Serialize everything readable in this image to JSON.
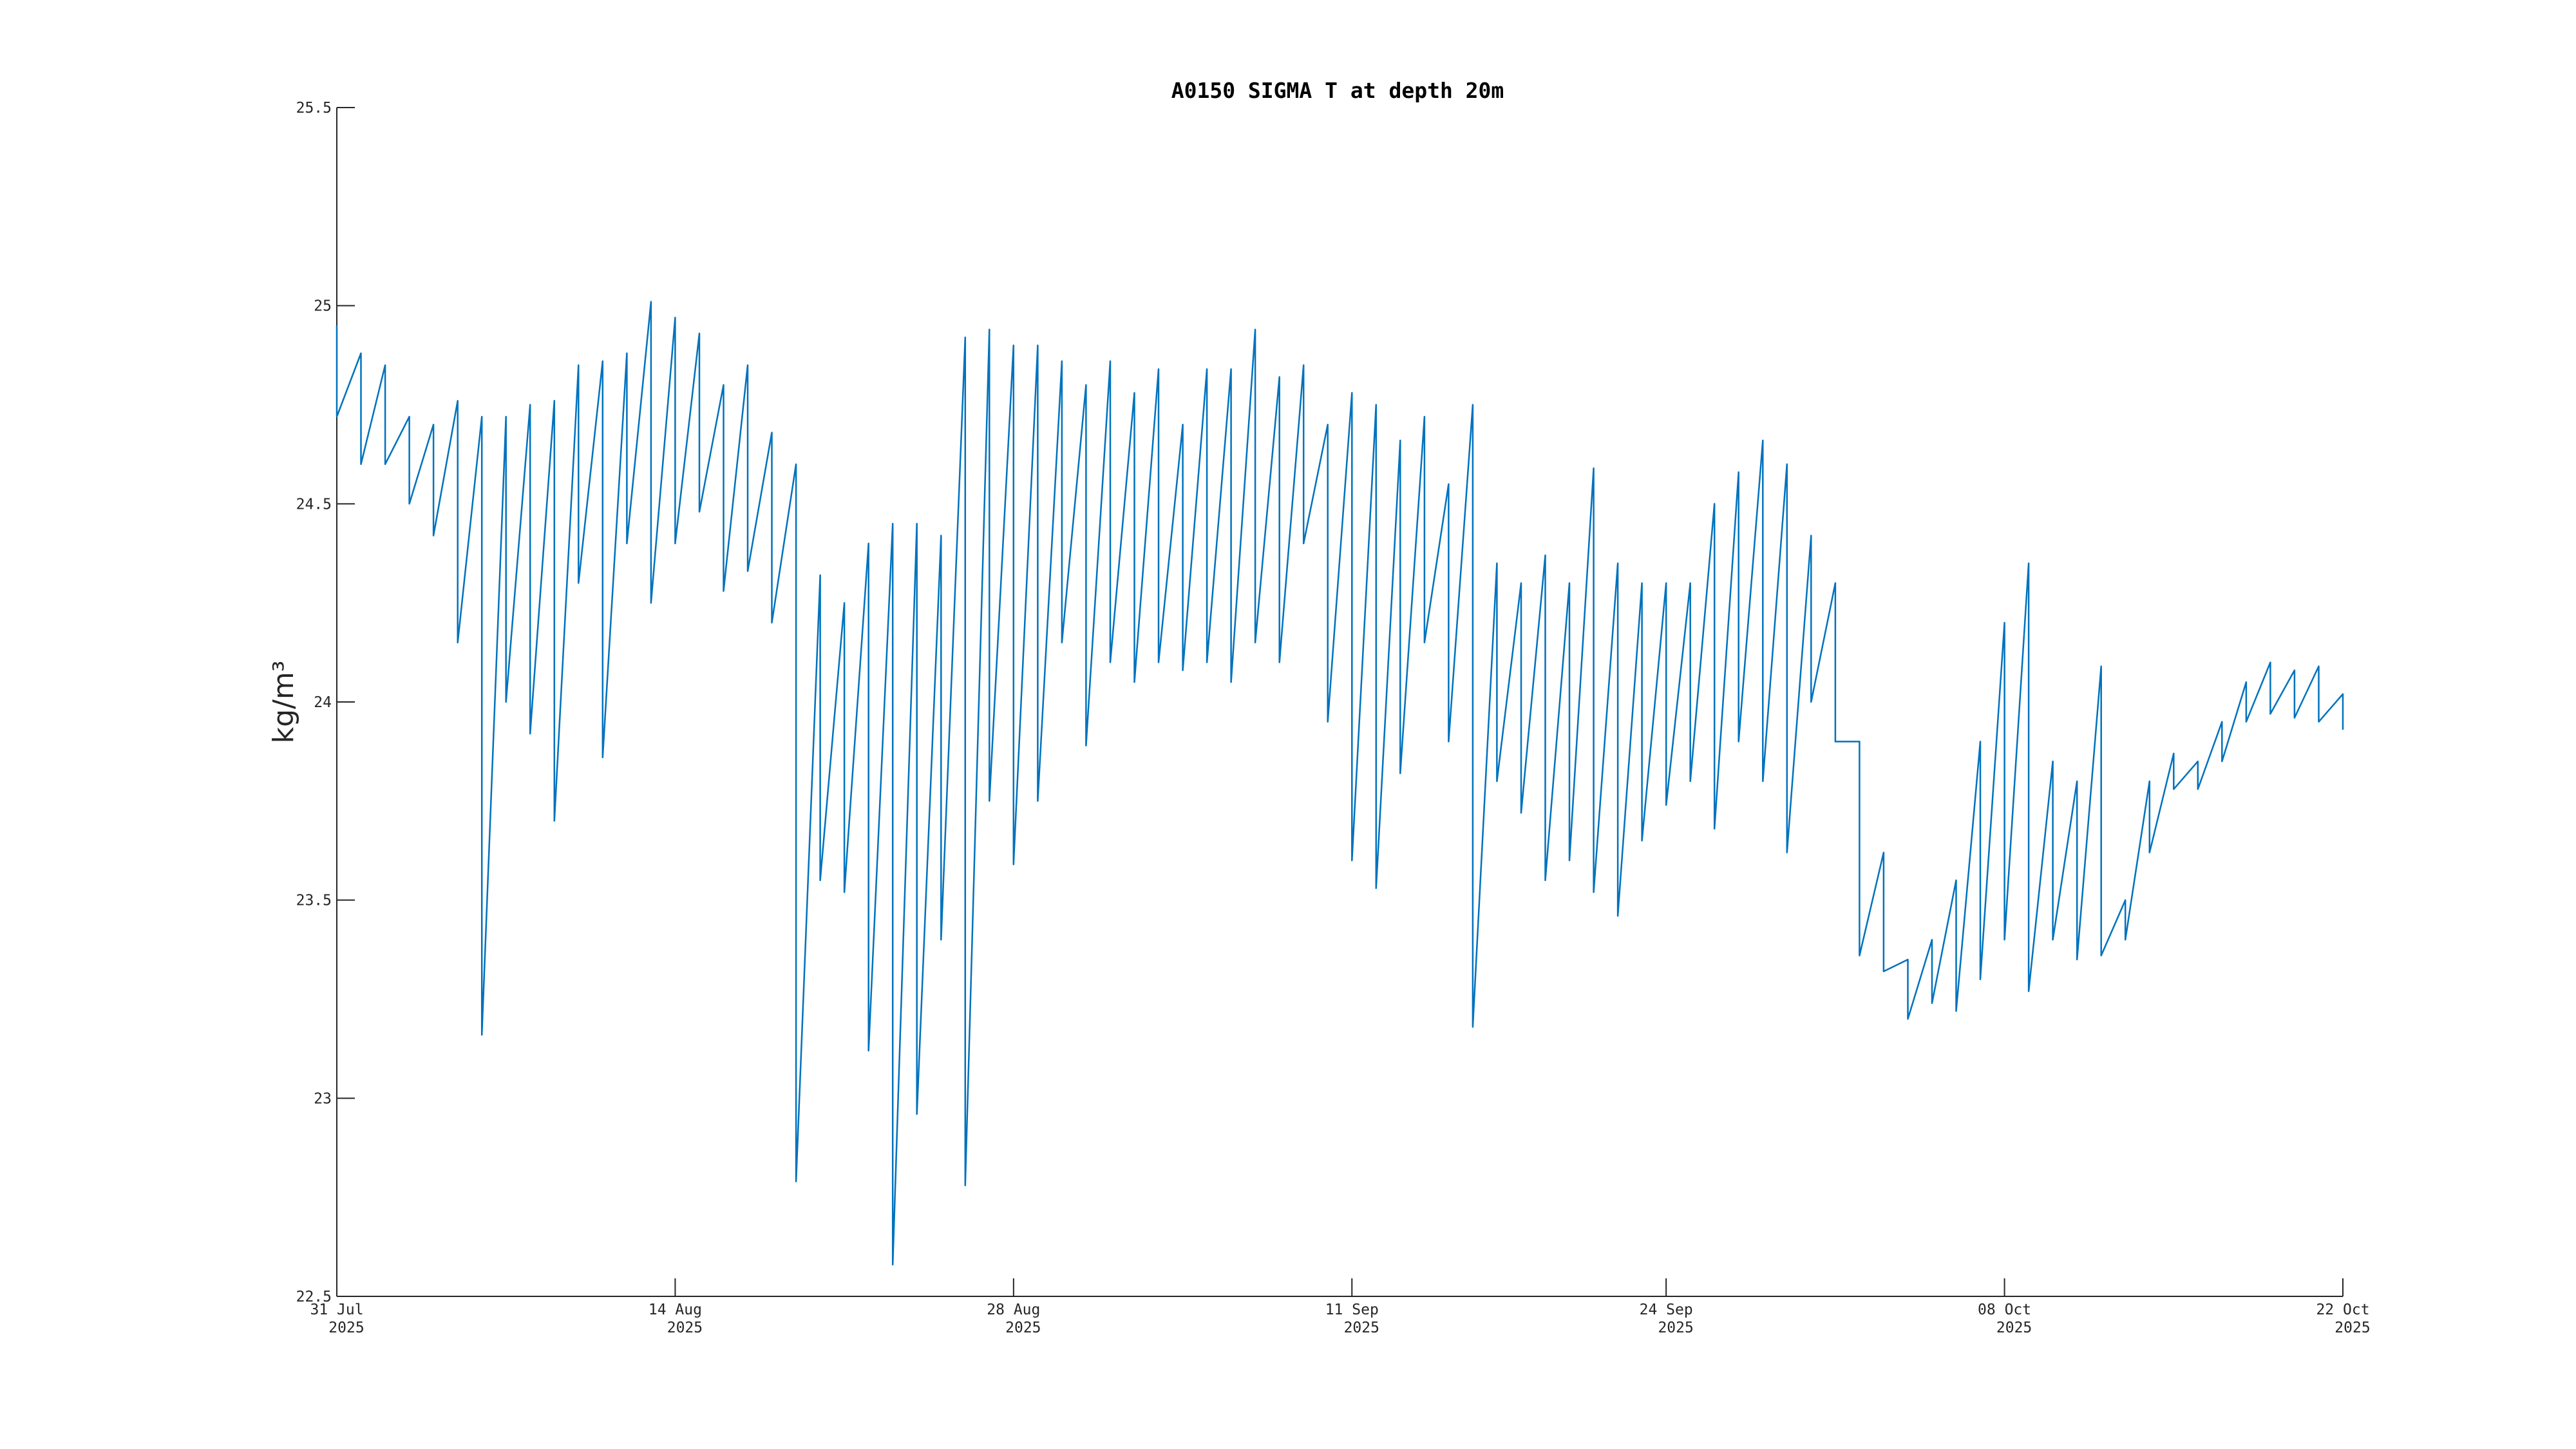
{
  "chart_data": {
    "type": "line",
    "title": "A0150 SIGMA T at depth 20m",
    "ylabel": "kg/m³",
    "x": [
      "2025-07-31",
      "2025-07-31",
      "2025-08-01",
      "2025-08-01",
      "2025-08-02",
      "2025-08-02",
      "2025-08-03",
      "2025-08-03",
      "2025-08-04",
      "2025-08-04",
      "2025-08-05",
      "2025-08-05",
      "2025-08-06",
      "2025-08-06",
      "2025-08-07",
      "2025-08-07",
      "2025-08-08",
      "2025-08-08",
      "2025-08-09",
      "2025-08-09",
      "2025-08-10",
      "2025-08-10",
      "2025-08-11",
      "2025-08-11",
      "2025-08-12",
      "2025-08-12",
      "2025-08-13",
      "2025-08-13",
      "2025-08-14",
      "2025-08-14",
      "2025-08-15",
      "2025-08-15",
      "2025-08-16",
      "2025-08-16",
      "2025-08-17",
      "2025-08-17",
      "2025-08-18",
      "2025-08-18",
      "2025-08-19",
      "2025-08-19",
      "2025-08-20",
      "2025-08-20",
      "2025-08-21",
      "2025-08-21",
      "2025-08-22",
      "2025-08-22",
      "2025-08-23",
      "2025-08-23",
      "2025-08-24",
      "2025-08-24",
      "2025-08-25",
      "2025-08-25",
      "2025-08-26",
      "2025-08-26",
      "2025-08-27",
      "2025-08-27",
      "2025-08-28",
      "2025-08-28",
      "2025-08-29",
      "2025-08-29",
      "2025-08-30",
      "2025-08-30",
      "2025-08-31",
      "2025-08-31",
      "2025-09-01",
      "2025-09-01",
      "2025-09-02",
      "2025-09-02",
      "2025-09-03",
      "2025-09-03",
      "2025-09-04",
      "2025-09-04",
      "2025-09-05",
      "2025-09-05",
      "2025-09-06",
      "2025-09-06",
      "2025-09-07",
      "2025-09-07",
      "2025-09-08",
      "2025-09-08",
      "2025-09-09",
      "2025-09-09",
      "2025-09-10",
      "2025-09-10",
      "2025-09-11",
      "2025-09-11",
      "2025-09-12",
      "2025-09-12",
      "2025-09-13",
      "2025-09-13",
      "2025-09-14",
      "2025-09-14",
      "2025-09-15",
      "2025-09-15",
      "2025-09-16",
      "2025-09-16",
      "2025-09-17",
      "2025-09-17",
      "2025-09-18",
      "2025-09-18",
      "2025-09-19",
      "2025-09-19",
      "2025-09-20",
      "2025-09-20",
      "2025-09-21",
      "2025-09-21",
      "2025-09-22",
      "2025-09-22",
      "2025-09-23",
      "2025-09-23",
      "2025-09-24",
      "2025-09-24",
      "2025-09-25",
      "2025-09-25",
      "2025-09-26",
      "2025-09-26",
      "2025-09-27",
      "2025-09-27",
      "2025-09-28",
      "2025-09-28",
      "2025-09-29",
      "2025-09-29",
      "2025-09-30",
      "2025-09-30",
      "2025-10-01",
      "2025-10-01",
      "2025-10-02",
      "2025-10-02",
      "2025-10-03",
      "2025-10-03",
      "2025-10-04",
      "2025-10-04",
      "2025-10-05",
      "2025-10-05",
      "2025-10-06",
      "2025-10-06",
      "2025-10-07",
      "2025-10-07",
      "2025-10-08",
      "2025-10-08",
      "2025-10-09",
      "2025-10-09",
      "2025-10-10",
      "2025-10-10",
      "2025-10-11",
      "2025-10-11",
      "2025-10-12",
      "2025-10-12",
      "2025-10-13",
      "2025-10-13",
      "2025-10-14",
      "2025-10-14",
      "2025-10-15",
      "2025-10-15",
      "2025-10-16",
      "2025-10-16",
      "2025-10-17",
      "2025-10-17",
      "2025-10-18",
      "2025-10-18",
      "2025-10-19",
      "2025-10-19",
      "2025-10-20",
      "2025-10-20",
      "2025-10-21",
      "2025-10-21",
      "2025-10-22",
      "2025-10-22"
    ],
    "series": [
      {
        "color": "#0072bd",
        "values": [
          24.95,
          24.72,
          24.88,
          24.6,
          24.85,
          24.6,
          24.72,
          24.5,
          24.7,
          24.42,
          24.76,
          24.15,
          24.72,
          23.16,
          24.72,
          24.0,
          24.75,
          23.92,
          24.76,
          23.7,
          24.85,
          24.3,
          24.86,
          23.86,
          24.88,
          24.4,
          25.01,
          24.25,
          24.97,
          24.4,
          24.93,
          24.48,
          24.8,
          24.28,
          24.85,
          24.33,
          24.68,
          24.2,
          24.6,
          22.79,
          24.32,
          23.55,
          24.25,
          23.52,
          24.4,
          23.12,
          24.45,
          22.58,
          24.45,
          22.96,
          24.42,
          23.4,
          24.92,
          22.78,
          24.94,
          23.75,
          24.9,
          23.59,
          24.9,
          23.75,
          24.86,
          24.15,
          24.8,
          23.89,
          24.86,
          24.1,
          24.78,
          24.05,
          24.84,
          24.1,
          24.7,
          24.08,
          24.84,
          24.1,
          24.84,
          24.05,
          24.94,
          24.15,
          24.82,
          24.1,
          24.85,
          24.4,
          24.7,
          23.95,
          24.78,
          23.6,
          24.75,
          23.53,
          24.66,
          23.82,
          24.72,
          24.15,
          24.55,
          23.9,
          24.75,
          23.18,
          24.35,
          23.8,
          24.3,
          23.72,
          24.37,
          23.55,
          24.3,
          23.6,
          24.59,
          23.52,
          24.35,
          23.46,
          24.3,
          23.65,
          24.3,
          23.74,
          24.3,
          23.8,
          24.5,
          23.68,
          24.58,
          23.9,
          24.66,
          23.8,
          24.6,
          23.62,
          24.42,
          24.0,
          24.3,
          23.9,
          23.9,
          23.36,
          23.62,
          23.32,
          23.35,
          23.2,
          23.4,
          23.24,
          23.55,
          23.22,
          23.9,
          23.3,
          24.2,
          23.4,
          24.35,
          23.27,
          23.85,
          23.4,
          23.8,
          23.35,
          24.09,
          23.36,
          23.5,
          23.4,
          23.8,
          23.62,
          23.87,
          23.78,
          23.85,
          23.78,
          23.95,
          23.85,
          24.05,
          23.95,
          24.1,
          23.97,
          24.08,
          23.96,
          24.09,
          23.95,
          24.02,
          23.93
        ]
      }
    ],
    "xlim": [
      "2025-07-31",
      "2025-10-22"
    ],
    "xticks": [
      {
        "value": "2025-07-31",
        "label": "31 Jul 2025"
      },
      {
        "value": "2025-08-14",
        "label": "14 Aug 2025"
      },
      {
        "value": "2025-08-28",
        "label": "28 Aug 2025"
      },
      {
        "value": "2025-09-11",
        "label": "11 Sep 2025"
      },
      {
        "value": "2025-09-24",
        "label": "24 Sep 2025"
      },
      {
        "value": "2025-10-08",
        "label": "08 Oct 2025"
      },
      {
        "value": "2025-10-22",
        "label": "22 Oct 2025"
      }
    ],
    "ylim": [
      22.5,
      25.5
    ],
    "yticks": [
      22.5,
      23,
      23.5,
      24,
      24.5,
      25,
      25.5
    ]
  }
}
